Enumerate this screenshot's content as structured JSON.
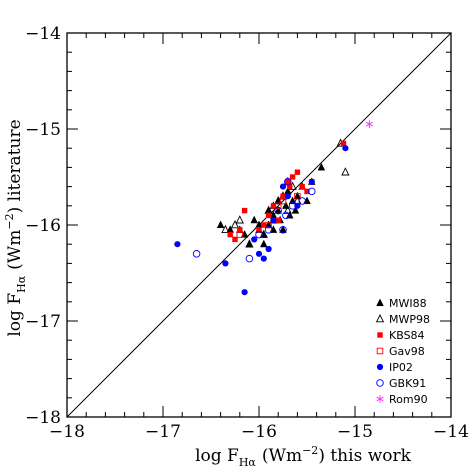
{
  "chart_data": {
    "type": "scatter",
    "xlabel": "log F_Hα (Wm⁻²) this work",
    "ylabel": "log F_Hα (Wm⁻²) literature",
    "xlabel_parts": {
      "main": "log F",
      "sub": "Hα",
      "unit": "(Wm",
      "exp": "−2",
      "rest": ") this work"
    },
    "ylabel_parts": {
      "main": "log F",
      "sub": "Hα",
      "unit": "(Wm",
      "exp": "−2",
      "rest": ") literature"
    },
    "xlim": [
      -18,
      -14
    ],
    "ylim": [
      -18,
      -14
    ],
    "xticks": [
      -18,
      -17,
      -16,
      -15,
      -14
    ],
    "yticks": [
      -18,
      -17,
      -16,
      -15,
      -14
    ],
    "xtick_labels": [
      "−18",
      "−17",
      "−16",
      "−15",
      "−14"
    ],
    "ytick_labels": [
      "−18",
      "−17",
      "−16",
      "−15",
      "−14"
    ],
    "identity_line": true,
    "legend_position": "bottom-right",
    "series": [
      {
        "name": "MWI88",
        "marker": "filled-triangle",
        "color": "#000000",
        "points": [
          [
            -16.4,
            -16.0
          ],
          [
            -16.3,
            -16.05
          ],
          [
            -16.15,
            -16.1
          ],
          [
            -16.1,
            -16.2
          ],
          [
            -16.05,
            -15.95
          ],
          [
            -16.0,
            -16.0
          ],
          [
            -16.0,
            -16.05
          ],
          [
            -15.95,
            -16.1
          ],
          [
            -15.9,
            -15.85
          ],
          [
            -15.85,
            -15.8
          ],
          [
            -15.85,
            -15.9
          ],
          [
            -15.8,
            -15.85
          ],
          [
            -15.8,
            -15.75
          ],
          [
            -15.78,
            -15.95
          ],
          [
            -15.75,
            -15.7
          ],
          [
            -15.72,
            -15.8
          ],
          [
            -15.7,
            -15.65
          ],
          [
            -15.68,
            -15.9
          ],
          [
            -15.65,
            -15.75
          ],
          [
            -15.62,
            -15.85
          ],
          [
            -15.6,
            -15.7
          ],
          [
            -15.55,
            -15.6
          ],
          [
            -15.5,
            -15.75
          ],
          [
            -15.45,
            -15.55
          ],
          [
            -15.35,
            -15.4
          ],
          [
            -15.95,
            -16.2
          ],
          [
            -15.9,
            -16.0
          ],
          [
            -16.2,
            -16.05
          ],
          [
            -15.75,
            -16.05
          ],
          [
            -15.85,
            -16.05
          ]
        ]
      },
      {
        "name": "MWP98",
        "marker": "open-triangle",
        "color": "#000000",
        "points": [
          [
            -16.35,
            -16.05
          ],
          [
            -16.25,
            -16.0
          ],
          [
            -16.2,
            -15.95
          ],
          [
            -16.1,
            -16.2
          ],
          [
            -15.95,
            -16.1
          ],
          [
            -15.9,
            -15.85
          ],
          [
            -15.85,
            -15.95
          ],
          [
            -15.8,
            -15.75
          ],
          [
            -15.75,
            -15.7
          ],
          [
            -15.7,
            -15.85
          ],
          [
            -15.65,
            -15.6
          ],
          [
            -15.6,
            -15.75
          ],
          [
            -15.15,
            -15.15
          ],
          [
            -15.1,
            -15.45
          ],
          [
            -15.7,
            -15.55
          ]
        ]
      },
      {
        "name": "KBS84",
        "marker": "filled-square",
        "color": "#ff0000",
        "points": [
          [
            -16.3,
            -16.1
          ],
          [
            -16.25,
            -16.15
          ],
          [
            -16.2,
            -16.05
          ],
          [
            -16.15,
            -15.85
          ],
          [
            -16.0,
            -16.05
          ],
          [
            -15.95,
            -16.0
          ],
          [
            -15.9,
            -15.9
          ],
          [
            -15.85,
            -15.8
          ],
          [
            -15.8,
            -15.95
          ],
          [
            -15.75,
            -15.7
          ],
          [
            -15.7,
            -15.55
          ],
          [
            -15.68,
            -15.6
          ],
          [
            -15.65,
            -15.5
          ],
          [
            -15.6,
            -15.45
          ],
          [
            -15.55,
            -15.6
          ],
          [
            -15.5,
            -15.65
          ],
          [
            -15.45,
            -15.55
          ],
          [
            -15.12,
            -15.15
          ]
        ]
      },
      {
        "name": "Gav98",
        "marker": "open-square",
        "color": "#ff0000",
        "points": [
          [
            -16.2,
            -16.1
          ],
          [
            -15.9,
            -16.0
          ],
          [
            -15.8,
            -15.8
          ],
          [
            -15.75,
            -15.75
          ],
          [
            -15.6,
            -15.7
          ]
        ]
      },
      {
        "name": "IP02",
        "marker": "filled-circle",
        "color": "#0000ff",
        "points": [
          [
            -16.85,
            -16.2
          ],
          [
            -16.35,
            -16.4
          ],
          [
            -16.15,
            -16.7
          ],
          [
            -16.05,
            -16.15
          ],
          [
            -16.0,
            -16.3
          ],
          [
            -15.95,
            -16.35
          ],
          [
            -15.9,
            -16.25
          ],
          [
            -15.85,
            -15.95
          ],
          [
            -15.75,
            -15.6
          ],
          [
            -15.7,
            -15.7
          ],
          [
            -15.6,
            -15.8
          ],
          [
            -15.45,
            -15.55
          ],
          [
            -15.1,
            -15.2
          ]
        ]
      },
      {
        "name": "GBK91",
        "marker": "open-circle",
        "color": "#0000ff",
        "points": [
          [
            -16.65,
            -16.3
          ],
          [
            -16.1,
            -16.35
          ],
          [
            -16.0,
            -16.1
          ],
          [
            -15.9,
            -16.05
          ],
          [
            -15.8,
            -15.85
          ],
          [
            -15.75,
            -16.05
          ],
          [
            -15.72,
            -15.9
          ],
          [
            -15.7,
            -15.55
          ],
          [
            -15.65,
            -15.8
          ],
          [
            -15.55,
            -15.75
          ],
          [
            -15.45,
            -15.65
          ]
        ]
      },
      {
        "name": "Rom90",
        "marker": "star",
        "color": "#ff33ff",
        "points": [
          [
            -14.85,
            -14.95
          ]
        ]
      }
    ]
  }
}
